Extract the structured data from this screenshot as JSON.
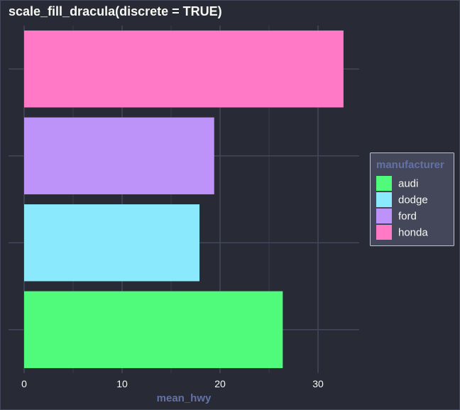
{
  "colors": {
    "background": "#282A36",
    "panel_border": "#44475A",
    "grid_major": "#44475A",
    "grid_minor": "#3A3C4A",
    "legend_bg": "#44475A",
    "legend_border": "#BCC0D0",
    "text": "#F8F8F2",
    "axis_title": "#6272A4"
  },
  "chart_data": {
    "type": "bar",
    "orientation": "horizontal",
    "title": "scale_fill_dracula(discrete = TRUE)",
    "xlabel": "mean_hwy",
    "ylabel": "",
    "xlim": [
      0,
      34
    ],
    "x_ticks": [
      0,
      10,
      20,
      30
    ],
    "grid": true,
    "categories": [
      "audi",
      "dodge",
      "ford",
      "honda"
    ],
    "values": [
      26.4,
      17.9,
      19.4,
      32.6
    ],
    "colors": [
      "#50FA7B",
      "#8BE9FD",
      "#BD93F9",
      "#FF79C6"
    ],
    "legend": {
      "title": "manufacturer",
      "position": "right",
      "entries": [
        "audi",
        "dodge",
        "ford",
        "honda"
      ]
    }
  }
}
